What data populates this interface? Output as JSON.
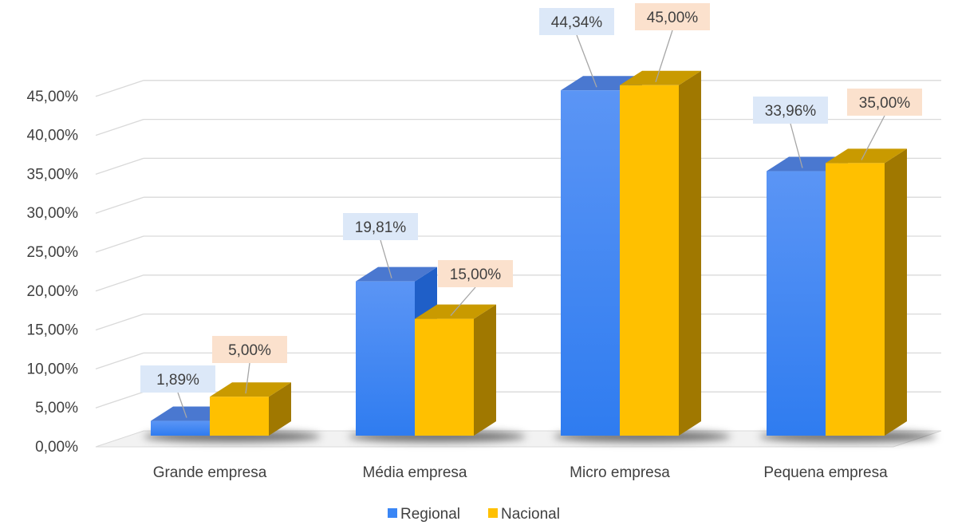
{
  "chart_data": {
    "type": "bar",
    "categories": [
      "Grande empresa",
      "Média empresa",
      "Micro empresa",
      "Pequena empresa"
    ],
    "series": [
      {
        "name": "Regional",
        "values": [
          1.89,
          19.81,
          44.34,
          33.96
        ],
        "labels": [
          "1,89%",
          "19,81%",
          "44,34%",
          "33,96%"
        ],
        "color": "#3a86f5",
        "label_bg": "#dce8f8"
      },
      {
        "name": "Nacional",
        "values": [
          5.0,
          15.0,
          45.0,
          35.0
        ],
        "labels": [
          "5,00%",
          "15,00%",
          "45,00%",
          "35,00%"
        ],
        "color": "#ffc000",
        "label_bg": "#fbe1cd"
      }
    ],
    "y_ticks": [
      0,
      5,
      10,
      15,
      20,
      25,
      30,
      35,
      40,
      45
    ],
    "y_tick_labels": [
      "0,00%",
      "5,00%",
      "10,00%",
      "15,00%",
      "20,00%",
      "25,00%",
      "30,00%",
      "35,00%",
      "40,00%",
      "45,00%"
    ],
    "ylim": [
      0,
      45
    ],
    "grid": true,
    "legend_position": "bottom",
    "style": "3d-clustered-column"
  }
}
